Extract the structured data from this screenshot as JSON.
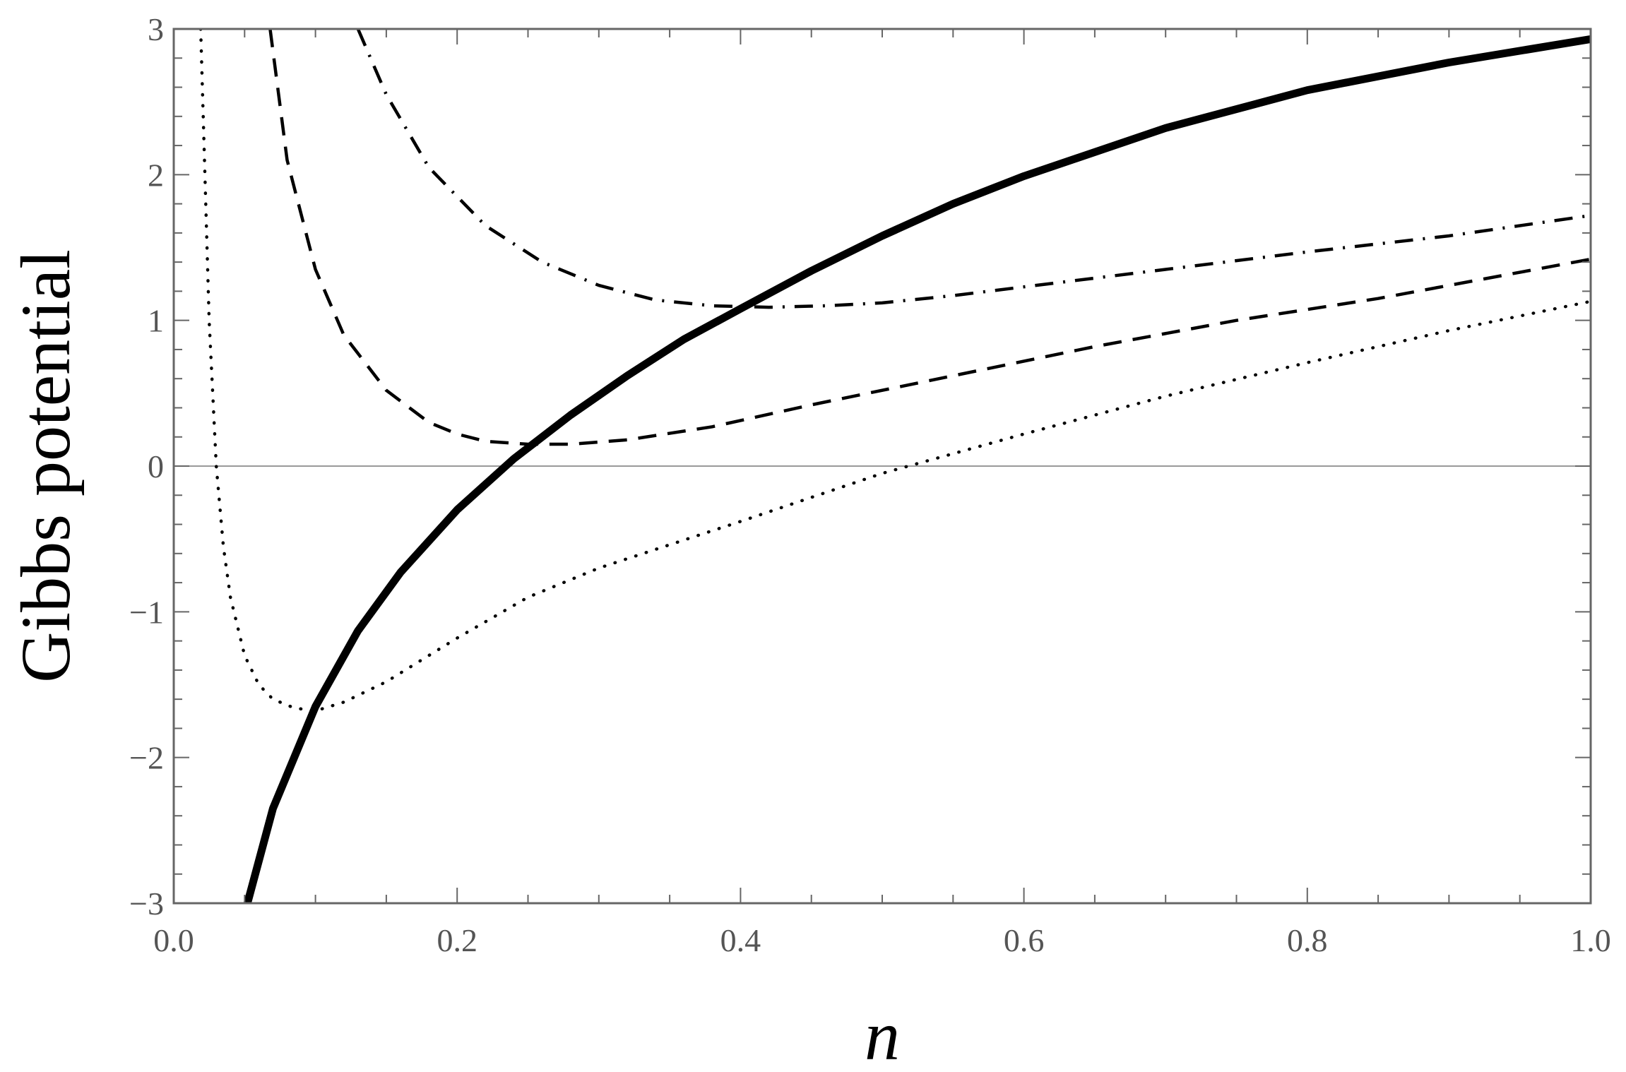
{
  "chart_data": {
    "type": "line",
    "xlabel": "n",
    "ylabel": "Gibbs potential",
    "xlim": [
      0.0,
      1.0
    ],
    "ylim": [
      -3,
      3
    ],
    "x_ticks": [
      0.0,
      0.2,
      0.4,
      0.6,
      0.8,
      1.0
    ],
    "x_tick_labels": [
      "0.0",
      "0.2",
      "0.4",
      "0.6",
      "0.8",
      "1.0"
    ],
    "y_ticks": [
      -3,
      -2,
      -1,
      0,
      1,
      2,
      3
    ],
    "y_tick_labels": [
      "−3",
      "−2",
      "−1",
      "0",
      "1",
      "2",
      "3"
    ],
    "grid": false,
    "zero_line": true,
    "colors": {
      "series": "#000000",
      "frame": "#666666",
      "zero_line": "#999999"
    },
    "series": [
      {
        "style": "solid",
        "x": [
          0.052,
          0.07,
          0.1,
          0.13,
          0.16,
          0.2,
          0.24,
          0.28,
          0.32,
          0.36,
          0.4,
          0.45,
          0.5,
          0.55,
          0.6,
          0.7,
          0.8,
          0.9,
          1.0
        ],
        "y": [
          -3.0,
          -2.35,
          -1.65,
          -1.13,
          -0.73,
          -0.3,
          0.05,
          0.35,
          0.62,
          0.87,
          1.08,
          1.34,
          1.58,
          1.8,
          1.99,
          2.32,
          2.58,
          2.77,
          2.93
        ]
      },
      {
        "style": "dotted",
        "x": [
          0.019,
          0.022,
          0.025,
          0.03,
          0.035,
          0.04,
          0.05,
          0.06,
          0.07,
          0.085,
          0.1,
          0.12,
          0.15,
          0.2,
          0.25,
          0.3,
          0.4,
          0.5,
          0.6,
          0.7,
          0.8,
          0.9,
          1.0
        ],
        "y": [
          3.0,
          2.0,
          1.0,
          0.0,
          -0.55,
          -0.9,
          -1.3,
          -1.5,
          -1.6,
          -1.66,
          -1.68,
          -1.62,
          -1.48,
          -1.18,
          -0.9,
          -0.7,
          -0.38,
          -0.05,
          0.22,
          0.48,
          0.71,
          0.93,
          1.13
        ]
      },
      {
        "style": "dashed",
        "x": [
          0.068,
          0.08,
          0.1,
          0.12,
          0.15,
          0.18,
          0.2,
          0.22,
          0.25,
          0.28,
          0.32,
          0.38,
          0.45,
          0.55,
          0.65,
          0.75,
          0.85,
          1.0
        ],
        "y": [
          3.0,
          2.1,
          1.35,
          0.9,
          0.52,
          0.3,
          0.22,
          0.17,
          0.15,
          0.15,
          0.18,
          0.27,
          0.42,
          0.62,
          0.82,
          1.0,
          1.15,
          1.42
        ]
      },
      {
        "style": "dash-dot",
        "x": [
          0.13,
          0.15,
          0.18,
          0.22,
          0.26,
          0.3,
          0.34,
          0.38,
          0.42,
          0.46,
          0.5,
          0.55,
          0.6,
          0.7,
          0.8,
          0.9,
          1.0
        ],
        "y": [
          3.0,
          2.55,
          2.05,
          1.65,
          1.4,
          1.24,
          1.14,
          1.1,
          1.09,
          1.1,
          1.12,
          1.17,
          1.23,
          1.35,
          1.47,
          1.58,
          1.72
        ]
      }
    ]
  }
}
